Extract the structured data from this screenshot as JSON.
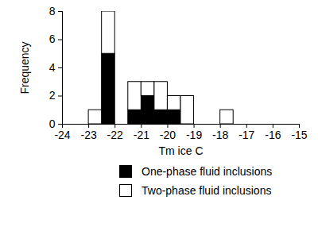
{
  "chart_data": {
    "type": "histogram",
    "stacked": true,
    "legend": "bottom",
    "x_label": "Tm ice C",
    "y_label": "Frequency",
    "bins": [
      -24,
      -23.5,
      -23,
      -22.5,
      -22,
      -21.5,
      -21,
      -20.5,
      -20,
      -19.5,
      -19,
      -18.5,
      -18,
      -17.5,
      -17,
      -16.5,
      -16,
      -15.5,
      -15
    ],
    "series": [
      {
        "name": "One-phase fluid inclusions",
        "color": "#000000",
        "values": [
          0,
          0,
          0,
          5,
          0,
          1,
          2,
          1,
          1,
          0,
          0,
          0,
          0,
          0,
          0,
          0,
          0,
          0
        ]
      },
      {
        "name": "Two-phase fluid inclusions",
        "color": "#ffffff",
        "values": [
          0,
          0,
          1,
          3,
          0,
          2,
          1,
          2,
          1,
          2,
          0,
          0,
          1,
          0,
          0,
          0,
          0,
          0
        ]
      }
    ],
    "xlim": [
      -24,
      -15
    ],
    "xticks": [
      -24,
      -23,
      -22,
      -21,
      -20,
      -19,
      -18,
      -17,
      -16,
      -15
    ],
    "ylim": [
      0,
      8
    ],
    "yticks": [
      0,
      2,
      4,
      6,
      8
    ]
  }
}
